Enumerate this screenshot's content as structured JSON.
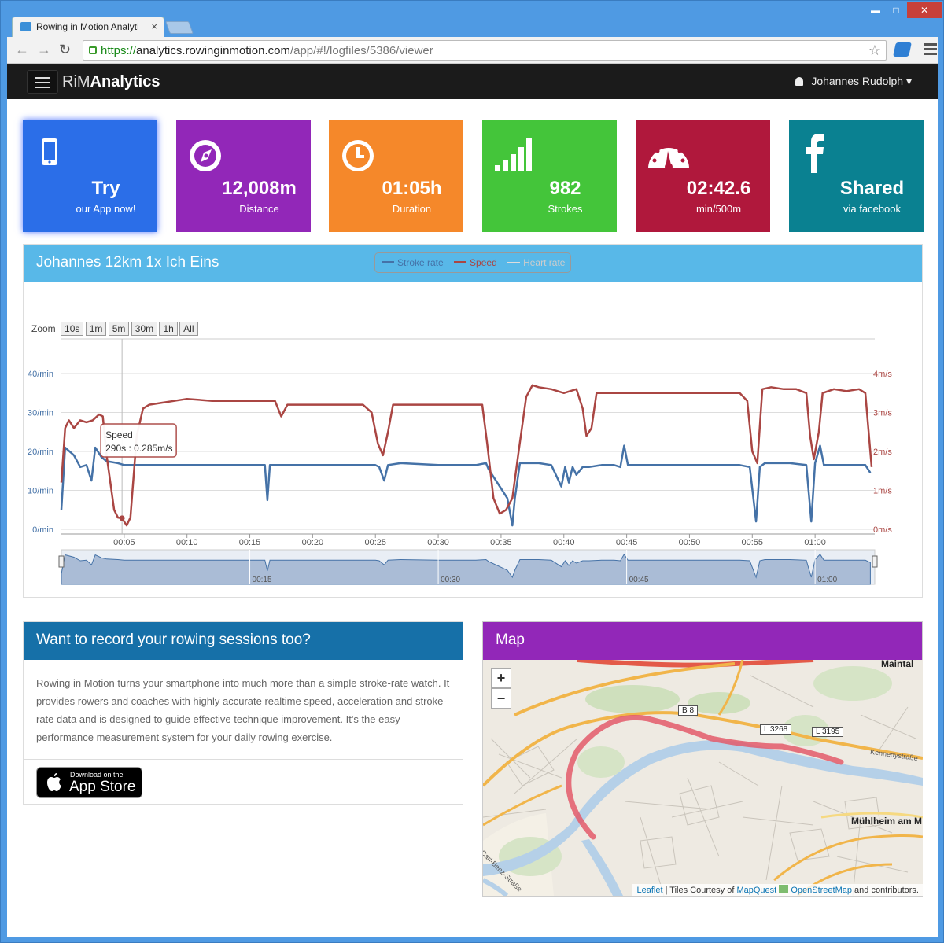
{
  "browser": {
    "tab_title": "Rowing in Motion Analyti",
    "tab_close": "×",
    "url_scheme": "https://",
    "url_host": "analytics.rowinginmotion.com",
    "url_path": "/app/#!/logfiles/5386/viewer",
    "win_minimize": "▬",
    "win_maximize": "□",
    "win_close": "✕"
  },
  "navbar": {
    "brand_light": "RiM",
    "brand_bold": "Analytics",
    "user_name": "Johannes Rudolph"
  },
  "tiles": [
    {
      "value": "Try",
      "label": "our App now!",
      "color": "#2b6ee8",
      "icon": "smartphone-icon"
    },
    {
      "value": "12,008m",
      "label": "Distance",
      "color": "#9227b8",
      "icon": "compass-icon"
    },
    {
      "value": "01:05h",
      "label": "Duration",
      "color": "#f5882a",
      "icon": "clock-icon"
    },
    {
      "value": "982",
      "label": "Strokes",
      "color": "#44c53a",
      "icon": "signal-bars-icon"
    },
    {
      "value": "02:42.6",
      "label": "min/500m",
      "color": "#b0183c",
      "icon": "speedometer-icon"
    },
    {
      "value": "Shared",
      "label": "via facebook",
      "color": "#0a8191",
      "icon": "facebook-icon"
    }
  ],
  "session": {
    "title": "Johannes 12km 1x Ich Eins",
    "header_color": "#58b8e8"
  },
  "chart_data": {
    "type": "line",
    "legend": [
      "Stroke rate",
      "Speed",
      "Heart rate"
    ],
    "zoom_label": "Zoom",
    "zoom_buttons": [
      "10s",
      "1m",
      "5m",
      "30m",
      "1h",
      "All"
    ],
    "y_left_ticks": [
      "0/min",
      "10/min",
      "20/min",
      "30/min",
      "40/min"
    ],
    "y_left_range": [
      0,
      40
    ],
    "y_right_ticks": [
      "0m/s",
      "1m/s",
      "2m/s",
      "3m/s",
      "4m/s"
    ],
    "y_right_range": [
      0,
      4
    ],
    "x_ticks": [
      "00:05",
      "00:10",
      "00:15",
      "00:20",
      "00:25",
      "00:30",
      "00:35",
      "00:40",
      "00:45",
      "00:50",
      "00:55",
      "01:00"
    ],
    "x_range_min": [
      0,
      64.5
    ],
    "navigator_ticks": [
      "00:15",
      "00:30",
      "00:45",
      "01:00"
    ],
    "tooltip": {
      "title": "Speed",
      "text": "290s : 0.285m/s",
      "x_min": 4.83,
      "value": 0.285
    },
    "series": [
      {
        "name": "Stroke rate",
        "color": "#4572a7",
        "axis": "left",
        "points": [
          [
            0,
            5
          ],
          [
            0.3,
            21
          ],
          [
            1,
            19
          ],
          [
            1.5,
            16
          ],
          [
            2,
            16.5
          ],
          [
            2.4,
            12.5
          ],
          [
            2.7,
            21
          ],
          [
            3.2,
            18.5
          ],
          [
            3.6,
            17.5
          ],
          [
            4.5,
            17
          ],
          [
            5,
            16.5
          ],
          [
            7,
            16.5
          ],
          [
            10,
            16.5
          ],
          [
            14,
            16.5
          ],
          [
            16.2,
            16.5
          ],
          [
            16.4,
            7.5
          ],
          [
            16.6,
            16.5
          ],
          [
            18,
            16.5
          ],
          [
            22,
            16.5
          ],
          [
            25,
            16.5
          ],
          [
            25.3,
            16
          ],
          [
            25.7,
            12.5
          ],
          [
            26,
            16.5
          ],
          [
            27,
            17
          ],
          [
            30,
            16.5
          ],
          [
            33,
            16.5
          ],
          [
            33.8,
            17
          ],
          [
            34,
            15.5
          ],
          [
            35.5,
            8
          ],
          [
            35.9,
            1
          ],
          [
            36.1,
            8
          ],
          [
            36.5,
            17
          ],
          [
            38,
            17
          ],
          [
            39,
            16.5
          ],
          [
            39.8,
            11
          ],
          [
            40.1,
            16
          ],
          [
            40.4,
            12
          ],
          [
            40.7,
            16
          ],
          [
            41,
            14
          ],
          [
            41.5,
            16
          ],
          [
            42,
            16
          ],
          [
            43,
            16.5
          ],
          [
            44,
            16.5
          ],
          [
            44.5,
            16
          ],
          [
            44.8,
            21.5
          ],
          [
            45.1,
            16.5
          ],
          [
            46,
            16.5
          ],
          [
            48,
            16.5
          ],
          [
            50,
            16.5
          ],
          [
            52,
            16.5
          ],
          [
            53,
            16.5
          ],
          [
            54,
            16.5
          ],
          [
            54.8,
            16
          ],
          [
            55.3,
            2
          ],
          [
            55.6,
            16
          ],
          [
            56,
            17
          ],
          [
            58,
            17
          ],
          [
            59.3,
            16.5
          ],
          [
            59.7,
            2
          ],
          [
            60,
            17
          ],
          [
            60.4,
            21.5
          ],
          [
            60.7,
            16.5
          ],
          [
            62,
            16.5
          ],
          [
            63,
            16.5
          ],
          [
            64,
            16.5
          ],
          [
            64.4,
            14.5
          ]
        ]
      },
      {
        "name": "Speed",
        "color": "#aa4643",
        "axis": "right",
        "points": [
          [
            0,
            1.2
          ],
          [
            0.3,
            2.6
          ],
          [
            0.6,
            2.8
          ],
          [
            1,
            2.6
          ],
          [
            1.5,
            2.8
          ],
          [
            2,
            2.75
          ],
          [
            2.5,
            2.8
          ],
          [
            3,
            2.95
          ],
          [
            3.3,
            2.9
          ],
          [
            3.6,
            1.9
          ],
          [
            4.2,
            0.5
          ],
          [
            4.5,
            0.3
          ],
          [
            4.83,
            0.285
          ],
          [
            5.2,
            0.1
          ],
          [
            5.5,
            0.3
          ],
          [
            6,
            2.4
          ],
          [
            6.5,
            3.1
          ],
          [
            7,
            3.2
          ],
          [
            8,
            3.25
          ],
          [
            9,
            3.3
          ],
          [
            10,
            3.35
          ],
          [
            12,
            3.3
          ],
          [
            14,
            3.3
          ],
          [
            16,
            3.3
          ],
          [
            17,
            3.3
          ],
          [
            17.5,
            2.9
          ],
          [
            18,
            3.2
          ],
          [
            20,
            3.2
          ],
          [
            22,
            3.2
          ],
          [
            23,
            3.2
          ],
          [
            24,
            3.2
          ],
          [
            24.7,
            3
          ],
          [
            25.2,
            2.2
          ],
          [
            25.6,
            1.9
          ],
          [
            26,
            2.5
          ],
          [
            26.4,
            3.2
          ],
          [
            28,
            3.2
          ],
          [
            30,
            3.2
          ],
          [
            32,
            3.2
          ],
          [
            33.5,
            3.2
          ],
          [
            33.9,
            2.2
          ],
          [
            34.4,
            0.8
          ],
          [
            34.9,
            0.4
          ],
          [
            35.4,
            0.5
          ],
          [
            35.9,
            0.8
          ],
          [
            36.4,
            2
          ],
          [
            37,
            3.4
          ],
          [
            37.5,
            3.7
          ],
          [
            38,
            3.65
          ],
          [
            39,
            3.6
          ],
          [
            40,
            3.5
          ],
          [
            41,
            3.6
          ],
          [
            41.5,
            3.1
          ],
          [
            41.8,
            2.4
          ],
          [
            42.2,
            2.6
          ],
          [
            42.6,
            3.5
          ],
          [
            44,
            3.5
          ],
          [
            46,
            3.5
          ],
          [
            48,
            3.5
          ],
          [
            50,
            3.5
          ],
          [
            52,
            3.5
          ],
          [
            54,
            3.5
          ],
          [
            54.6,
            3.3
          ],
          [
            55,
            2
          ],
          [
            55.4,
            1.7
          ],
          [
            55.8,
            3.6
          ],
          [
            56.5,
            3.65
          ],
          [
            57.5,
            3.6
          ],
          [
            58.5,
            3.6
          ],
          [
            59.3,
            3.5
          ],
          [
            59.6,
            2.4
          ],
          [
            59.9,
            1.8
          ],
          [
            60.3,
            2.5
          ],
          [
            60.6,
            3.5
          ],
          [
            61.5,
            3.6
          ],
          [
            62.5,
            3.55
          ],
          [
            63.5,
            3.6
          ],
          [
            64,
            3.5
          ],
          [
            64.5,
            1.6
          ]
        ]
      }
    ]
  },
  "promo": {
    "title": "Want to record your rowing sessions too?",
    "header_color": "#1670a8",
    "body": "Rowing in Motion turns your smartphone into much more than a simple stroke-rate watch. It provides rowers and coaches with highly accurate realtime speed, acceleration and stroke-rate data and is designed to guide effective technique improvement. It's the easy performance measurement system for your daily rowing exercise.",
    "store_line1": "Download on the",
    "store_line2": "App Store"
  },
  "map": {
    "title": "Map",
    "header_color": "#9227b8",
    "zoom_in": "+",
    "zoom_out": "−",
    "towns": [
      "Maintal",
      "Mühlheim am M"
    ],
    "road_labels": [
      "B 8",
      "L 3268",
      "L 3195"
    ],
    "street_labels": [
      "Kennedystraße",
      "Carl-Benz-Straße"
    ],
    "attr_leaflet": "Leaflet",
    "attr_sep": " | Tiles Courtesy of ",
    "attr_mapquest": "MapQuest",
    "attr_osm": "OpenStreetMap",
    "attr_end": " and contributors."
  }
}
